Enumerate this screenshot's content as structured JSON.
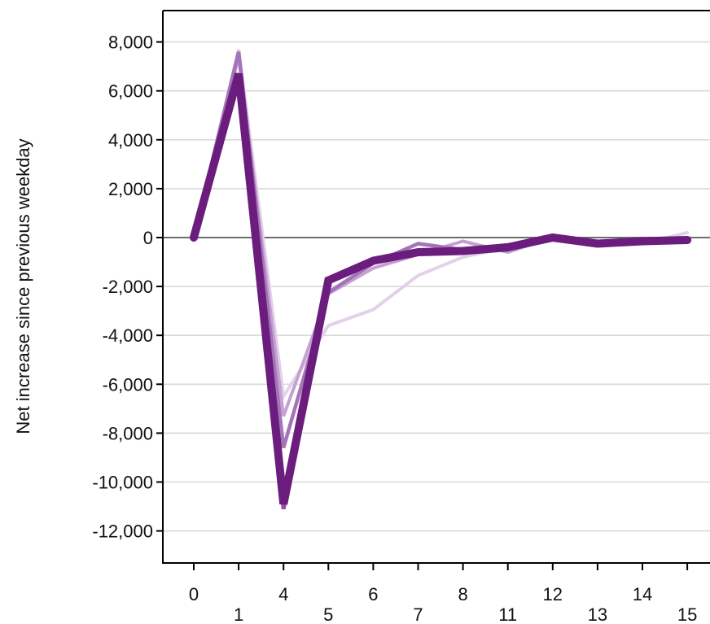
{
  "chart_data": {
    "type": "line",
    "title": "",
    "xlabel": "",
    "ylabel": "Net increase since previous weekday",
    "x": [
      0,
      1,
      4,
      5,
      6,
      7,
      8,
      11,
      12,
      13,
      14,
      15
    ],
    "xticks_upper": [
      "0",
      "4",
      "6",
      "8",
      "12",
      "14"
    ],
    "xticks_lower": [
      "1",
      "5",
      "7",
      "11",
      "13",
      "15"
    ],
    "ylim": [
      -13000,
      9300
    ],
    "yticks": [
      8000,
      6000,
      4000,
      2000,
      0,
      -2000,
      -4000,
      -6000,
      -8000,
      -10000,
      -12000
    ],
    "ytick_labels": [
      "8,000",
      "6,000",
      "4,000",
      "2,000",
      "0",
      "-2,000",
      "-4,000",
      "-6,000",
      "-8,000",
      "-10,000",
      "-12,000"
    ],
    "grid": true,
    "legend": "none",
    "series": [
      {
        "values": [
          0,
          7700,
          -6500,
          -3600,
          -2950,
          -1550,
          -800,
          -400,
          0,
          -250,
          -250,
          200
        ],
        "color": "#e3d1ea",
        "width": 4
      },
      {
        "values": [
          0,
          7400,
          -7300,
          -2300,
          -1250,
          -700,
          -150,
          -600,
          0,
          -250,
          -100,
          -100
        ],
        "color": "#c6a0d2",
        "width": 4
      },
      {
        "values": [
          0,
          7600,
          -8600,
          -2250,
          -1050,
          -250,
          -500,
          -300,
          0,
          -250,
          -100,
          -100
        ],
        "color": "#a573b8",
        "width": 4.5
      },
      {
        "values": [
          0,
          6600,
          -11100,
          -1750,
          -950,
          -600,
          -550,
          -400,
          0,
          -250,
          -150,
          -100
        ],
        "color": "#8c4fa2",
        "width": 5
      },
      {
        "values": [
          0,
          6700,
          -10900,
          -1750,
          -950,
          -600,
          -550,
          -400,
          0,
          -250,
          -150,
          -100
        ],
        "color": "#6b1d7e",
        "width": 10
      }
    ]
  }
}
